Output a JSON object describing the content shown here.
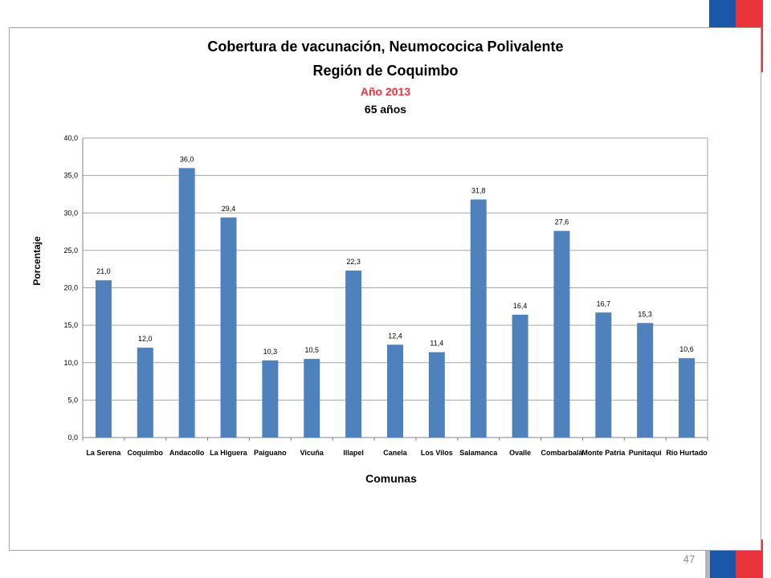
{
  "slide": {
    "page_number": "47",
    "accent_colors": {
      "blue": "#1a57a8",
      "red": "#e8343a",
      "grey": "#b5b5b5"
    }
  },
  "chart_data": {
    "type": "bar",
    "title": "Cobertura de vacunación, Neumococica Polivalente",
    "subtitle": "Región de Coquimbo",
    "year_label": "Año 2013",
    "age_label": "65 años",
    "xlabel": "Comunas",
    "ylabel": "Porcentaje",
    "ylim": [
      0,
      40
    ],
    "yticks": [
      "0,0",
      "5,0",
      "10,0",
      "15,0",
      "20,0",
      "25,0",
      "30,0",
      "35,0",
      "40,0"
    ],
    "grid": true,
    "bar_color": "#4f81bd",
    "categories": [
      "La Serena",
      "Coquimbo",
      "Andacollo",
      "La Higuera",
      "Paiguano",
      "Vicuña",
      "Illapel",
      "Canela",
      "Los Vilos",
      "Salamanca",
      "Ovalle",
      "Combarbalá",
      "Monte Patria",
      "Punitaqui",
      "Río Hurtado"
    ],
    "values": [
      21.0,
      12.0,
      36.0,
      29.4,
      10.3,
      10.5,
      22.3,
      12.4,
      11.4,
      31.8,
      16.4,
      27.6,
      16.7,
      15.3,
      10.6
    ],
    "value_labels": [
      "21,0",
      "12,0",
      "36,0",
      "29,4",
      "10,3",
      "10,5",
      "22,3",
      "12,4",
      "11,4",
      "31,8",
      "16,4",
      "27,6",
      "16,7",
      "15,3",
      "10,6"
    ]
  }
}
